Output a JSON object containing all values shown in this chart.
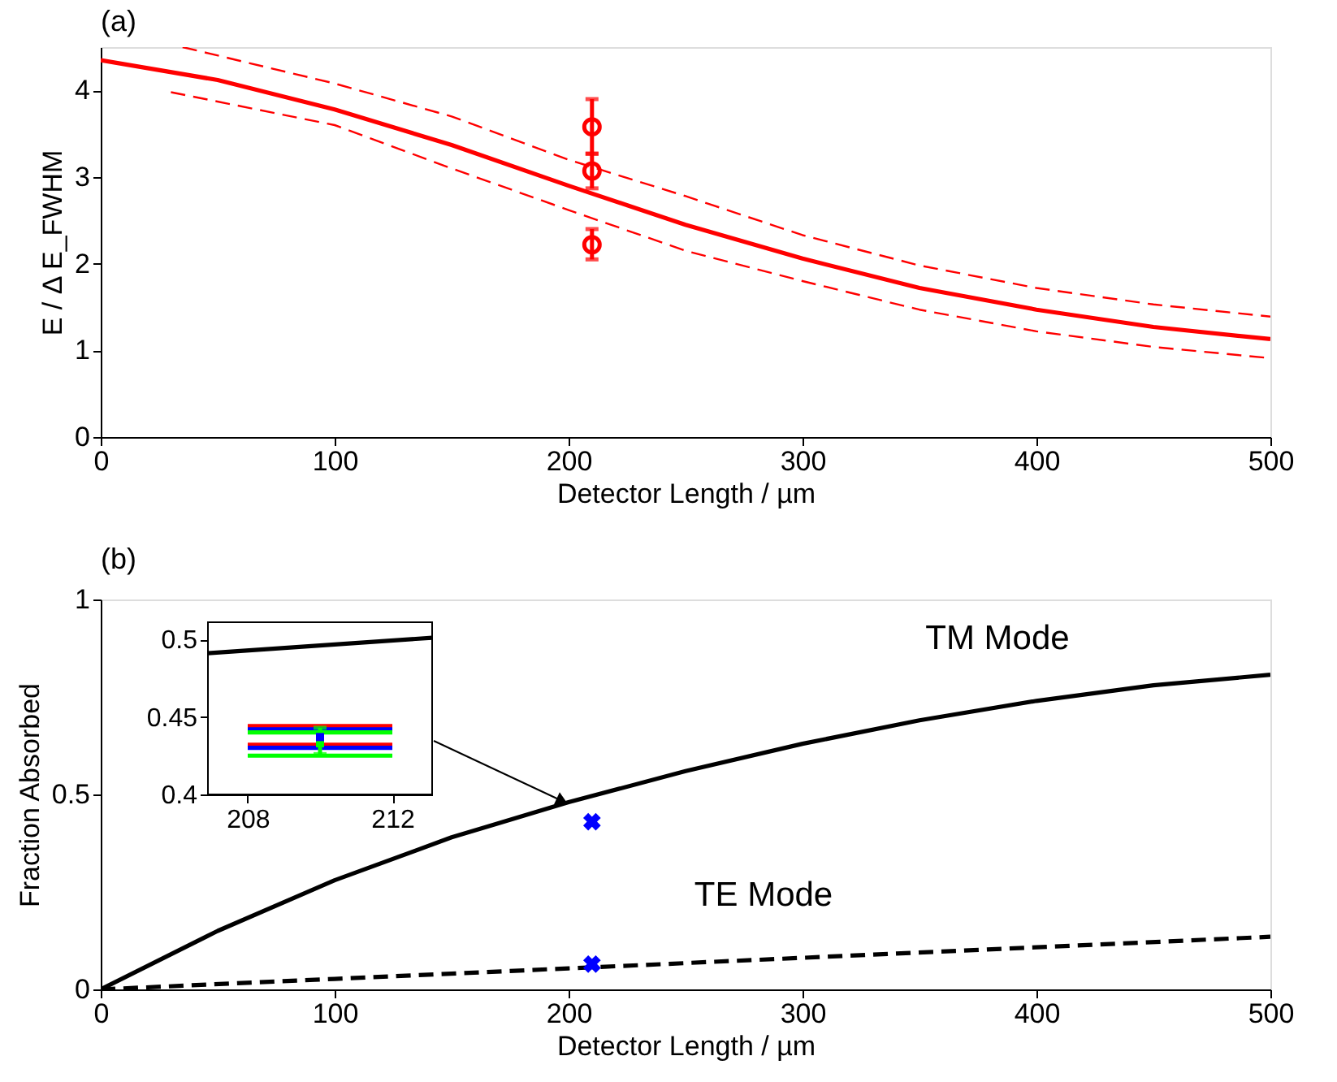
{
  "chart_data": [
    {
      "type": "line",
      "title": "(a)",
      "xlabel": "Detector Length / µm",
      "ylabel": "E / Δ E_FWHM",
      "xlim": [
        0,
        500
      ],
      "xticks": [
        0,
        100,
        200,
        300,
        400,
        500
      ],
      "ylim": [
        0,
        4.5
      ],
      "yticks": [
        0,
        1,
        2,
        3,
        4
      ],
      "grid": false,
      "series": [
        {
          "color": "#ff0000",
          "line_style": "solid",
          "x": [
            0,
            50,
            100,
            150,
            200,
            250,
            300,
            350,
            400,
            450,
            500
          ],
          "values": [
            4.35,
            4.12,
            3.78,
            3.37,
            2.9,
            2.45,
            2.06,
            1.72,
            1.47,
            1.27,
            1.13
          ]
        },
        {
          "color": "#ff0000",
          "line_style": "dashed",
          "x": [
            35,
            100,
            150,
            200,
            250,
            300,
            350,
            400,
            450,
            500
          ],
          "values": [
            4.5,
            4.08,
            3.7,
            3.2,
            2.78,
            2.33,
            1.98,
            1.72,
            1.53,
            1.39
          ]
        },
        {
          "color": "#ff0000",
          "line_style": "dashed",
          "x": [
            30,
            100,
            150,
            200,
            250,
            300,
            350,
            400,
            450,
            500
          ],
          "values": [
            3.98,
            3.6,
            3.1,
            2.62,
            2.15,
            1.8,
            1.47,
            1.22,
            1.04,
            0.91
          ]
        },
        {
          "type": "scatter",
          "color": "#ff0000",
          "marker": "circle",
          "x": [
            210,
            210,
            210
          ],
          "values": [
            3.58,
            3.07,
            2.22
          ],
          "errors": [
            [
              3.27,
              3.9
            ],
            [
              2.87,
              3.27
            ],
            [
              2.05,
              2.4
            ]
          ]
        }
      ]
    },
    {
      "type": "line",
      "title": "(b)",
      "xlabel": "Detector Length / µm",
      "ylabel": "Fraction Absorbed",
      "xlim": [
        0,
        500
      ],
      "xticks": [
        0,
        100,
        200,
        300,
        400,
        500
      ],
      "ylim": [
        0,
        1
      ],
      "yticks": [
        0,
        0.5,
        1
      ],
      "grid": false,
      "series": [
        {
          "name": "TM Mode",
          "color": "#000000",
          "line_style": "solid",
          "x": [
            0,
            50,
            100,
            150,
            200,
            250,
            300,
            350,
            400,
            450,
            500
          ],
          "values": [
            0,
            0.15,
            0.28,
            0.39,
            0.48,
            0.56,
            0.63,
            0.69,
            0.74,
            0.78,
            0.807
          ]
        },
        {
          "name": "TE Mode",
          "color": "#000000",
          "line_style": "dashed",
          "x": [
            0,
            100,
            200,
            300,
            400,
            500
          ],
          "values": [
            0,
            0.027,
            0.054,
            0.081,
            0.108,
            0.135
          ]
        },
        {
          "type": "scatter",
          "color": "#0000ff",
          "marker": "cross",
          "x": [
            210,
            210
          ],
          "values": [
            0.43,
            0.065
          ]
        }
      ]
    },
    {
      "type": "line",
      "xlim": [
        206.9,
        213.1
      ],
      "xticks": [
        208,
        212
      ],
      "ylim": [
        0.4,
        0.511
      ],
      "yticks": [
        0.4,
        0.45,
        0.5
      ],
      "grid": false,
      "series": [
        {
          "color": "#000000",
          "line_style": "solid",
          "x": [
            206.9,
            213.1
          ],
          "values": [
            0.491,
            0.501
          ]
        },
        {
          "color": "#ff0000",
          "line_style": "solid",
          "x": [
            208,
            212
          ],
          "values": [
            0.444,
            0.444
          ]
        },
        {
          "color": "#0000ff",
          "line_style": "solid",
          "x": [
            208,
            212
          ],
          "values": [
            0.442,
            0.442
          ]
        },
        {
          "color": "#00ff00",
          "line_style": "solid",
          "x": [
            208,
            212
          ],
          "values": [
            0.44,
            0.44
          ]
        },
        {
          "color": "#ff0000",
          "line_style": "solid",
          "x": [
            208,
            212
          ],
          "values": [
            0.432,
            0.432
          ]
        },
        {
          "color": "#0000ff",
          "line_style": "solid",
          "x": [
            208,
            212
          ],
          "values": [
            0.43,
            0.43
          ]
        },
        {
          "color": "#00ff00",
          "line_style": "solid",
          "x": [
            208,
            212
          ],
          "values": [
            0.425,
            0.425
          ]
        },
        {
          "type": "scatter",
          "color": "#00ff00",
          "marker": "square",
          "x": [
            210
          ],
          "values": [
            0.433
          ],
          "errors": [
            [
              0.426,
              0.443
            ]
          ]
        },
        {
          "type": "scatter",
          "color": "#0000ff",
          "marker": "square",
          "x": [
            210
          ],
          "values": [
            0.437
          ]
        }
      ]
    }
  ]
}
